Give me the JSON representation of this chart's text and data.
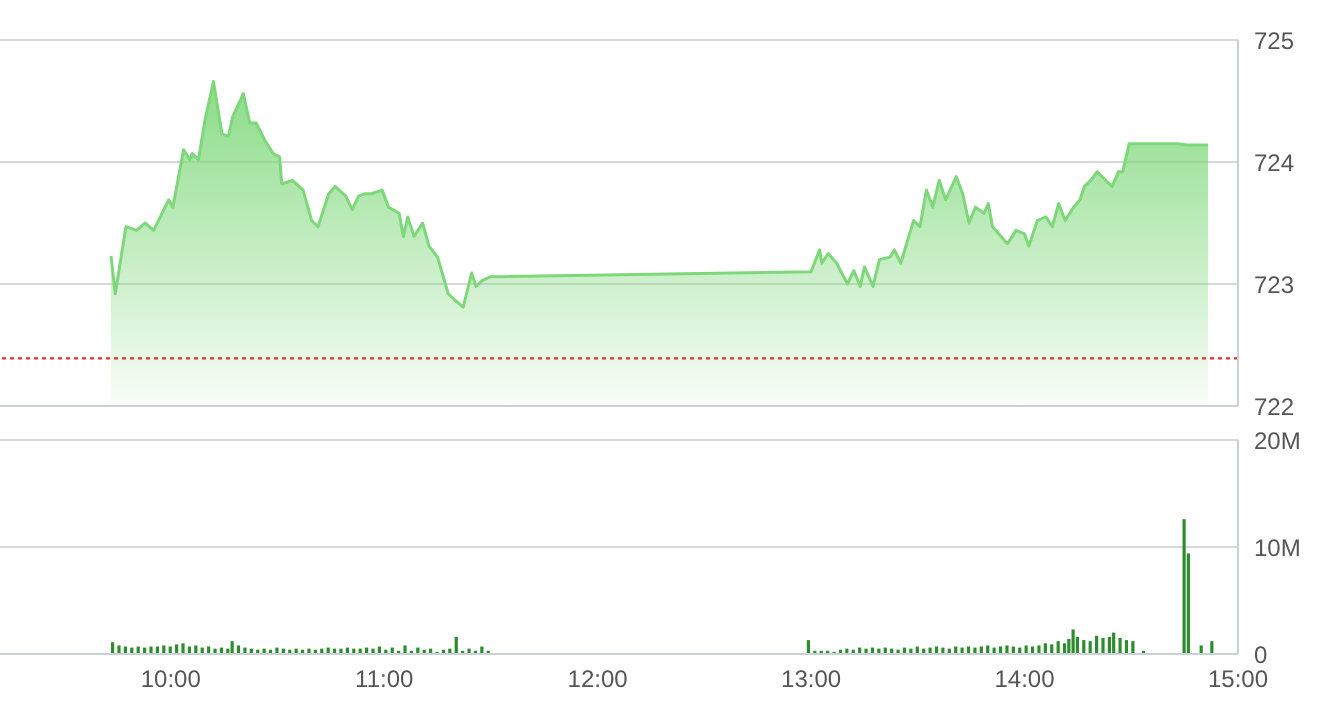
{
  "chart_data": [
    {
      "type": "area",
      "color": "#7ed87a",
      "xlim": [
        9.2,
        15
      ],
      "ylim": [
        722,
        725
      ],
      "yticks": [
        722,
        723,
        724,
        725
      ],
      "grid": "y",
      "tick_labels": "y",
      "legend": false,
      "x": [
        9.72,
        9.74,
        9.79,
        9.84,
        9.88,
        9.92,
        9.99,
        10.01,
        10.06,
        10.09,
        10.1,
        10.13,
        10.16,
        10.2,
        10.24,
        10.27,
        10.29,
        10.34,
        10.37,
        10.4,
        10.44,
        10.48,
        10.51,
        10.52,
        10.57,
        10.62,
        10.66,
        10.69,
        10.74,
        10.77,
        10.82,
        10.85,
        10.88,
        10.91,
        10.94,
        10.99,
        11.02,
        11.07,
        11.09,
        11.11,
        11.14,
        11.18,
        11.21,
        11.25,
        11.3,
        11.33,
        11.37,
        11.41,
        11.43,
        11.46,
        11.5,
        13.0,
        13.04,
        13.05,
        13.08,
        13.12,
        13.17,
        13.2,
        13.23,
        13.25,
        13.29,
        13.32,
        13.37,
        13.39,
        13.42,
        13.48,
        13.51,
        13.54,
        13.57,
        13.6,
        13.63,
        13.68,
        13.71,
        13.74,
        13.77,
        13.81,
        13.83,
        13.85,
        13.92,
        13.96,
        14.0,
        14.02,
        14.06,
        14.1,
        14.13,
        14.16,
        14.19,
        14.23,
        14.26,
        14.28,
        14.31,
        14.34,
        14.38,
        14.41,
        14.44,
        14.46,
        14.49,
        14.72,
        14.76,
        14.86
      ],
      "values": [
        723.23,
        722.92,
        723.47,
        723.44,
        723.5,
        723.44,
        723.69,
        723.63,
        724.1,
        724.02,
        724.07,
        724.02,
        724.34,
        724.66,
        724.23,
        724.21,
        724.37,
        724.56,
        724.32,
        724.32,
        724.18,
        724.07,
        724.04,
        723.82,
        723.85,
        723.77,
        723.52,
        723.47,
        723.74,
        723.8,
        723.72,
        723.61,
        723.72,
        723.74,
        723.74,
        723.77,
        723.63,
        723.58,
        723.39,
        723.55,
        723.39,
        723.5,
        723.31,
        723.22,
        722.92,
        722.87,
        722.81,
        723.09,
        722.98,
        723.03,
        723.06,
        723.1,
        723.28,
        723.17,
        723.25,
        723.17,
        723.0,
        723.11,
        722.98,
        723.14,
        722.98,
        723.2,
        723.22,
        723.28,
        723.17,
        723.52,
        723.47,
        723.77,
        723.63,
        723.85,
        723.69,
        723.88,
        723.74,
        723.5,
        723.63,
        723.58,
        723.66,
        723.47,
        723.33,
        723.44,
        723.41,
        723.31,
        723.52,
        723.55,
        723.47,
        723.66,
        723.52,
        723.63,
        723.69,
        723.8,
        723.85,
        723.92,
        723.85,
        723.8,
        723.92,
        723.92,
        724.15,
        724.15,
        724.14,
        724.14
      ],
      "ref_lines": [
        {
          "axis": "y",
          "value": 722.39,
          "color": "#e03030",
          "line_style": "dotted"
        }
      ]
    },
    {
      "type": "bar",
      "color": "#2e8b2e",
      "xlim": [
        9.2,
        15
      ],
      "xticks": [
        {
          "value": 10,
          "label": "10:00"
        },
        {
          "value": 11,
          "label": "11:00"
        },
        {
          "value": 12,
          "label": "12:00"
        },
        {
          "value": 13,
          "label": "13:00"
        },
        {
          "value": 14,
          "label": "14:00"
        },
        {
          "value": 15,
          "label": "15:00"
        }
      ],
      "ylim": [
        0,
        20
      ],
      "yticks": [
        {
          "value": 0,
          "label": "0"
        },
        {
          "value": 10,
          "label": "10M"
        },
        {
          "value": 20,
          "label": "20M"
        }
      ],
      "grid": "y",
      "legend": false,
      "x": [
        9.73,
        9.76,
        9.79,
        9.82,
        9.85,
        9.88,
        9.91,
        9.94,
        9.97,
        10.0,
        10.03,
        10.06,
        10.09,
        10.12,
        10.15,
        10.18,
        10.21,
        10.24,
        10.27,
        10.29,
        10.32,
        10.35,
        10.38,
        10.41,
        10.44,
        10.47,
        10.5,
        10.53,
        10.56,
        10.59,
        10.62,
        10.65,
        10.68,
        10.71,
        10.74,
        10.77,
        10.8,
        10.83,
        10.86,
        10.89,
        10.92,
        10.95,
        10.98,
        11.01,
        11.04,
        11.07,
        11.1,
        11.13,
        11.16,
        11.19,
        11.22,
        11.25,
        11.28,
        11.31,
        11.34,
        11.37,
        11.4,
        11.43,
        11.46,
        11.49,
        12.99,
        13.02,
        13.05,
        13.08,
        13.11,
        13.14,
        13.17,
        13.2,
        13.23,
        13.26,
        13.29,
        13.32,
        13.35,
        13.38,
        13.41,
        13.44,
        13.47,
        13.5,
        13.53,
        13.56,
        13.59,
        13.62,
        13.65,
        13.68,
        13.71,
        13.74,
        13.77,
        13.8,
        13.83,
        13.86,
        13.89,
        13.92,
        13.95,
        13.98,
        14.01,
        14.04,
        14.07,
        14.1,
        14.13,
        14.16,
        14.19,
        14.21,
        14.23,
        14.25,
        14.28,
        14.31,
        14.34,
        14.37,
        14.4,
        14.42,
        14.45,
        14.48,
        14.51,
        14.56,
        14.75,
        14.77,
        14.83,
        14.88
      ],
      "values": [
        1.1,
        0.8,
        0.7,
        0.6,
        0.7,
        0.6,
        0.7,
        0.7,
        0.8,
        0.7,
        0.9,
        1.0,
        0.7,
        0.8,
        0.6,
        0.7,
        0.5,
        0.6,
        0.5,
        1.2,
        0.8,
        0.6,
        0.5,
        0.4,
        0.5,
        0.4,
        0.6,
        0.5,
        0.4,
        0.5,
        0.4,
        0.5,
        0.4,
        0.5,
        0.6,
        0.5,
        0.5,
        0.6,
        0.5,
        0.5,
        0.6,
        0.5,
        0.7,
        0.4,
        0.6,
        0.3,
        0.8,
        0.3,
        0.6,
        0.4,
        0.5,
        0.2,
        0.4,
        0.5,
        1.6,
        0.3,
        0.5,
        0.3,
        0.7,
        0.3,
        1.3,
        0.3,
        0.3,
        0.3,
        0.2,
        0.4,
        0.5,
        0.4,
        0.6,
        0.5,
        0.6,
        0.5,
        0.6,
        0.5,
        0.4,
        0.6,
        0.5,
        0.7,
        0.5,
        0.6,
        0.7,
        0.6,
        0.5,
        0.7,
        0.6,
        0.7,
        0.6,
        0.7,
        0.8,
        0.6,
        0.7,
        0.8,
        0.7,
        0.6,
        0.8,
        0.7,
        0.8,
        1.0,
        0.9,
        1.2,
        1.0,
        1.4,
        2.3,
        1.6,
        1.3,
        1.2,
        1.7,
        1.5,
        1.6,
        2.0,
        1.5,
        1.3,
        1.2,
        0.3,
        12.6,
        9.4,
        0.8,
        1.2
      ]
    }
  ]
}
